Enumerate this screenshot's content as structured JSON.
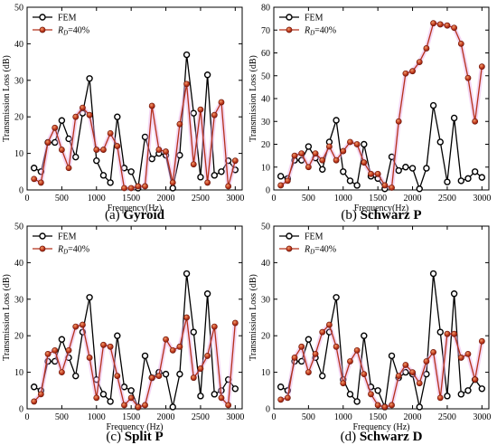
{
  "chart_data": [
    {
      "type": "line",
      "panel_label": "(a) Gyroid",
      "xlabel": "Frequency(Hz)",
      "ylabel": "Transmission Loss (dB)",
      "xlim": [
        0,
        3100
      ],
      "ylim": [
        0,
        50
      ],
      "xticks": [
        0,
        500,
        1000,
        1500,
        2000,
        2500,
        3000
      ],
      "yticks": [
        0,
        10,
        20,
        30,
        40,
        50
      ],
      "legend_position": "top-left",
      "series": [
        {
          "name": "FEM",
          "color": "#000000",
          "x": [
            100,
            200,
            300,
            400,
            500,
            600,
            700,
            800,
            900,
            1000,
            1100,
            1200,
            1300,
            1400,
            1500,
            1600,
            1700,
            1800,
            1900,
            2000,
            2100,
            2200,
            2300,
            2400,
            2500,
            2600,
            2700,
            2800,
            2900,
            3000
          ],
          "y": [
            6,
            5,
            13,
            13,
            19,
            14,
            9,
            21,
            30.5,
            8,
            4,
            2,
            20,
            6,
            5,
            0.5,
            14.5,
            8.5,
            10,
            9.5,
            0.5,
            9.5,
            37,
            21,
            3.5,
            31.5,
            4,
            5,
            8,
            5.5
          ]
        },
        {
          "name": "R_D=40%",
          "color": "#b5301a",
          "x": [
            100,
            200,
            300,
            400,
            500,
            600,
            700,
            800,
            900,
            1000,
            1100,
            1200,
            1300,
            1400,
            1500,
            1600,
            1700,
            1800,
            1900,
            2000,
            2100,
            2200,
            2300,
            2400,
            2500,
            2600,
            2700,
            2800,
            2900,
            3000
          ],
          "y": [
            3,
            2,
            13,
            17,
            11,
            6,
            20,
            22.5,
            20.5,
            11,
            11,
            15.5,
            12,
            0.5,
            0.5,
            1,
            1,
            23,
            11,
            10.5,
            2,
            18,
            29,
            7,
            22,
            2,
            20.5,
            24,
            1,
            8
          ]
        }
      ]
    },
    {
      "type": "line",
      "panel_label": "(b) Schwarz P",
      "xlabel": "Frequency(Hz)",
      "ylabel": "Transmission Loss (dB)",
      "xlim": [
        0,
        3100
      ],
      "ylim": [
        0,
        80
      ],
      "xticks": [
        0,
        500,
        1000,
        1500,
        2000,
        2500,
        3000
      ],
      "yticks": [
        0,
        10,
        20,
        30,
        40,
        50,
        60,
        70,
        80
      ],
      "legend_position": "top-left",
      "series": [
        {
          "name": "FEM",
          "color": "#000000",
          "x": [
            100,
            200,
            300,
            400,
            500,
            600,
            700,
            800,
            900,
            1000,
            1100,
            1200,
            1300,
            1400,
            1500,
            1600,
            1700,
            1800,
            1900,
            2000,
            2100,
            2200,
            2300,
            2400,
            2500,
            2600,
            2700,
            2800,
            2900,
            3000
          ],
          "y": [
            6,
            5,
            13,
            13,
            19,
            14,
            9,
            21,
            30.5,
            8,
            4,
            2,
            20,
            6,
            5,
            0.5,
            14.5,
            8.5,
            10,
            9.5,
            0.5,
            9.5,
            37,
            21,
            3.5,
            31.5,
            4,
            5,
            8,
            5.5
          ]
        },
        {
          "name": "R_D=40%",
          "color": "#b5301a",
          "x": [
            100,
            200,
            300,
            400,
            500,
            600,
            700,
            800,
            900,
            1000,
            1100,
            1200,
            1300,
            1400,
            1500,
            1600,
            1700,
            1800,
            1900,
            2000,
            2100,
            2200,
            2300,
            2400,
            2500,
            2600,
            2700,
            2800,
            2900,
            3000
          ],
          "y": [
            2,
            4,
            15,
            16,
            10,
            16,
            13,
            19,
            13,
            17,
            21,
            20,
            12,
            7,
            7,
            2,
            1,
            30,
            51,
            52,
            56,
            62,
            73,
            72.5,
            72,
            71,
            64,
            49,
            30,
            54
          ]
        }
      ]
    },
    {
      "type": "line",
      "panel_label": "(c) Split P",
      "xlabel": "Frequency (Hz)",
      "ylabel": "Transmission Loss (dB)",
      "xlim": [
        0,
        3100
      ],
      "ylim": [
        0,
        50
      ],
      "xticks": [
        0,
        500,
        1000,
        1500,
        2000,
        2500,
        3000
      ],
      "yticks": [
        0,
        10,
        20,
        30,
        40,
        50
      ],
      "legend_position": "top-left",
      "series": [
        {
          "name": "FEM",
          "color": "#000000",
          "x": [
            100,
            200,
            300,
            400,
            500,
            600,
            700,
            800,
            900,
            1000,
            1100,
            1200,
            1300,
            1400,
            1500,
            1600,
            1700,
            1800,
            1900,
            2000,
            2100,
            2200,
            2300,
            2400,
            2500,
            2600,
            2700,
            2800,
            2900,
            3000
          ],
          "y": [
            6,
            5,
            13,
            13,
            19,
            14,
            9,
            21,
            30.5,
            8,
            4,
            2,
            20,
            6,
            5,
            0.5,
            14.5,
            8.5,
            10,
            9.5,
            0.5,
            9.5,
            37,
            21,
            3.5,
            31.5,
            4,
            5,
            8,
            5.5
          ]
        },
        {
          "name": "R_D=40%",
          "color": "#b5301a",
          "x": [
            100,
            200,
            300,
            400,
            500,
            600,
            700,
            800,
            900,
            1000,
            1100,
            1200,
            1300,
            1400,
            1500,
            1600,
            1700,
            1800,
            1900,
            2000,
            2100,
            2200,
            2300,
            2400,
            2500,
            2600,
            2700,
            2800,
            2900,
            3000
          ],
          "y": [
            2,
            4,
            15,
            16,
            10,
            16,
            22.5,
            23,
            14,
            3,
            17.5,
            17,
            9,
            1,
            3,
            0.5,
            1,
            8.5,
            9,
            19,
            16,
            17,
            25,
            8.5,
            11,
            14.5,
            22.5,
            3,
            1,
            23.5
          ]
        }
      ]
    },
    {
      "type": "line",
      "panel_label": "(d) Schwarz D",
      "xlabel": "Frequency (Hz)",
      "ylabel": "Transmission Loss (dB)",
      "xlim": [
        0,
        3100
      ],
      "ylim": [
        0,
        50
      ],
      "xticks": [
        0,
        500,
        1000,
        1500,
        2000,
        2500,
        3000
      ],
      "yticks": [
        0,
        10,
        20,
        30,
        40,
        50
      ],
      "legend_position": "top-left",
      "series": [
        {
          "name": "FEM",
          "color": "#000000",
          "x": [
            100,
            200,
            300,
            400,
            500,
            600,
            700,
            800,
            900,
            1000,
            1100,
            1200,
            1300,
            1400,
            1500,
            1600,
            1700,
            1800,
            1900,
            2000,
            2100,
            2200,
            2300,
            2400,
            2500,
            2600,
            2700,
            2800,
            2900,
            3000
          ],
          "y": [
            6,
            5,
            13,
            13,
            19,
            14,
            9,
            21,
            30.5,
            8,
            4,
            2,
            20,
            6,
            5,
            0.5,
            14.5,
            8.5,
            10,
            9.5,
            0.5,
            9.5,
            37,
            21,
            3.5,
            31.5,
            4,
            5,
            8,
            5.5
          ]
        },
        {
          "name": "R_D=40%",
          "color": "#b5301a",
          "x": [
            100,
            200,
            300,
            400,
            500,
            600,
            700,
            800,
            900,
            1000,
            1100,
            1200,
            1300,
            1400,
            1500,
            1600,
            1700,
            1800,
            1900,
            2000,
            2100,
            2200,
            2300,
            2400,
            2500,
            2600,
            2700,
            2800,
            2900,
            3000
          ],
          "y": [
            2.5,
            3,
            14,
            17,
            10,
            15,
            21,
            23,
            17,
            7,
            13,
            16,
            9.5,
            4,
            1,
            0.5,
            1,
            9,
            12,
            10,
            7,
            13,
            15.5,
            3,
            20.5,
            20.5,
            14,
            15,
            8,
            18.5
          ]
        }
      ]
    }
  ]
}
